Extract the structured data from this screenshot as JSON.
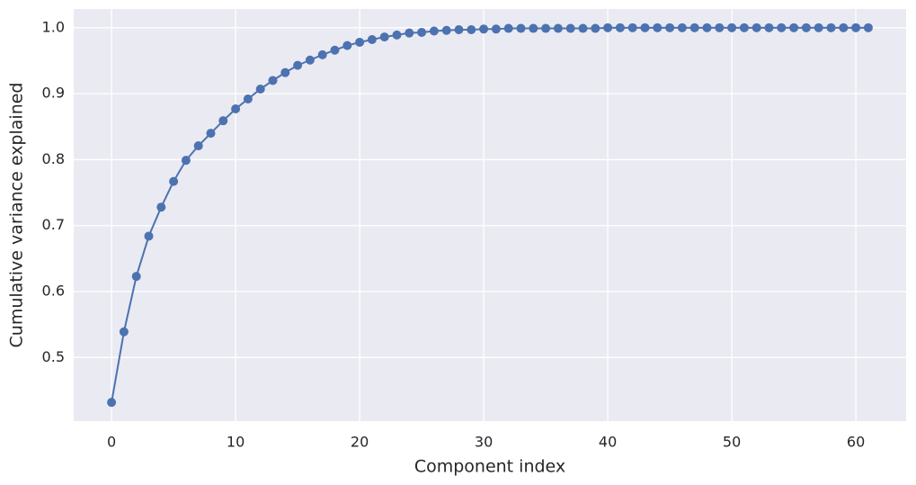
{
  "chart_data": {
    "type": "line",
    "xlabel": "Component index",
    "ylabel": "Cumulative variance explained",
    "x": [
      0,
      1,
      2,
      3,
      4,
      5,
      6,
      7,
      8,
      9,
      10,
      11,
      12,
      13,
      14,
      15,
      16,
      17,
      18,
      19,
      20,
      21,
      22,
      23,
      24,
      25,
      26,
      27,
      28,
      29,
      30,
      31,
      32,
      33,
      34,
      35,
      36,
      37,
      38,
      39,
      40,
      41,
      42,
      43,
      44,
      45,
      46,
      47,
      48,
      49,
      50,
      51,
      52,
      53,
      54,
      55,
      56,
      57,
      58,
      59,
      60,
      61
    ],
    "values": [
      0.432,
      0.539,
      0.623,
      0.684,
      0.728,
      0.767,
      0.799,
      0.821,
      0.84,
      0.859,
      0.877,
      0.892,
      0.907,
      0.92,
      0.932,
      0.943,
      0.951,
      0.959,
      0.966,
      0.973,
      0.978,
      0.982,
      0.986,
      0.989,
      0.992,
      0.993,
      0.995,
      0.996,
      0.997,
      0.997,
      0.998,
      0.998,
      0.999,
      0.999,
      0.999,
      0.999,
      0.999,
      0.999,
      0.999,
      0.999,
      1.0,
      1.0,
      1.0,
      1.0,
      1.0,
      1.0,
      1.0,
      1.0,
      1.0,
      1.0,
      1.0,
      1.0,
      1.0,
      1.0,
      1.0,
      1.0,
      1.0,
      1.0,
      1.0,
      1.0,
      1.0,
      1.0
    ],
    "color": "#4c72b0",
    "xlim": [
      -3.05,
      64.05
    ],
    "xticks": [
      0,
      10,
      20,
      30,
      40,
      50,
      60
    ],
    "ylim": [
      0.4036,
      1.0284
    ],
    "yticks": [
      0.5,
      0.6,
      0.7,
      0.8,
      0.9,
      {
        "value": 1.0,
        "label": "1.0"
      }
    ],
    "grid": true
  }
}
